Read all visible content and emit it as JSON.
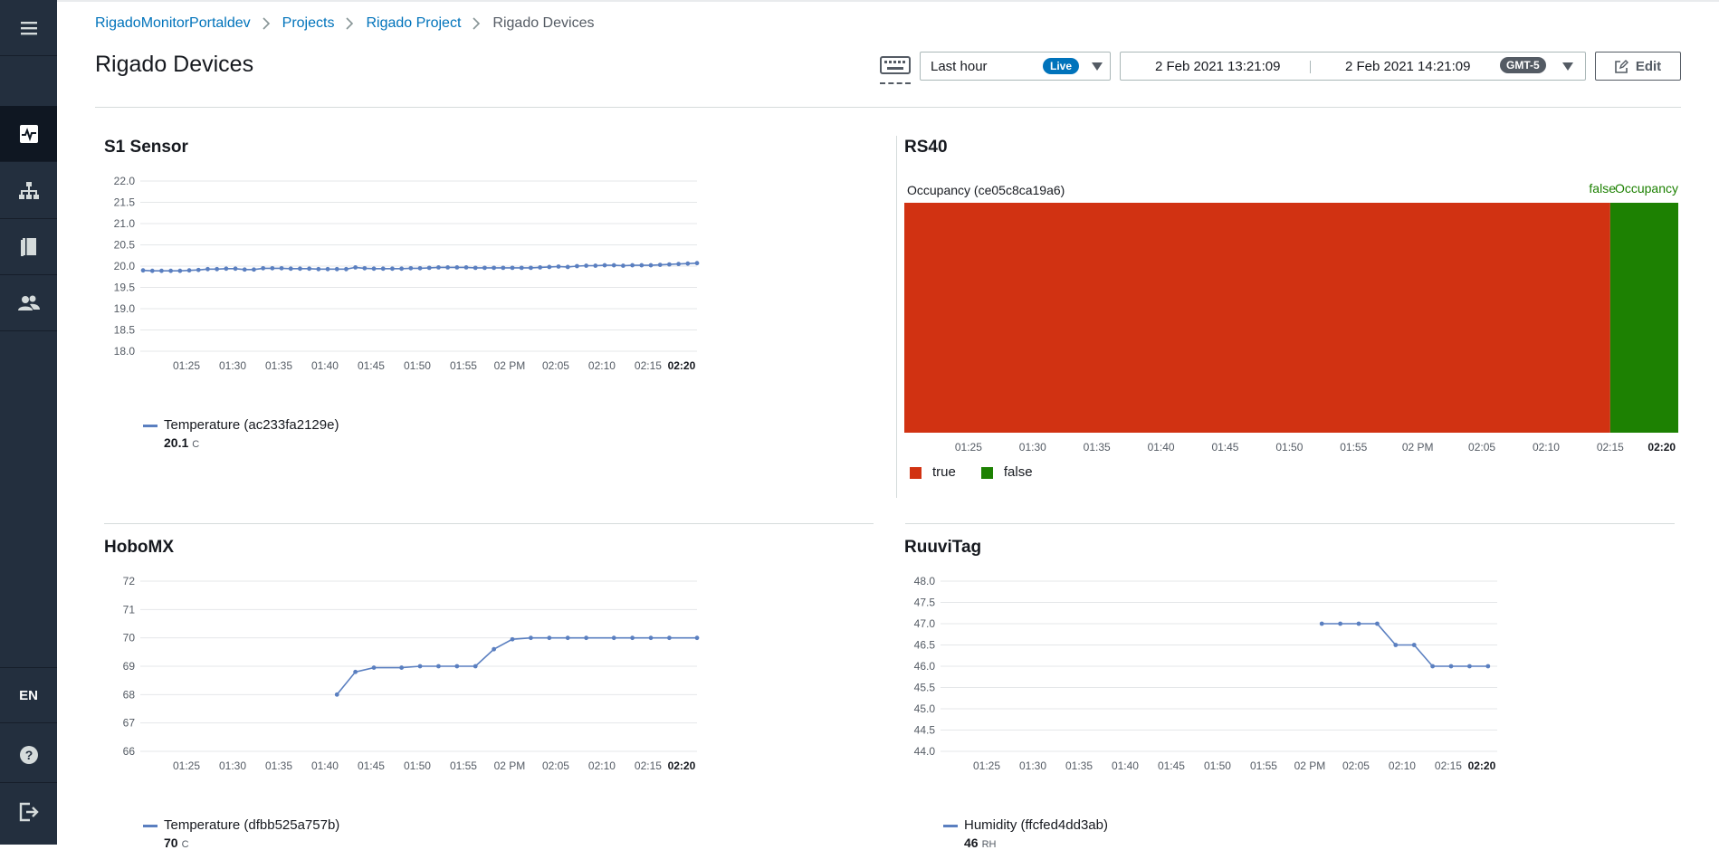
{
  "sidebar": {
    "lang": "EN",
    "items": [
      "hamburger-menu",
      "dashboard-icon",
      "hierarchy-icon",
      "book-icon",
      "users-icon"
    ]
  },
  "breadcrumb": [
    "RigadoMonitorPortaldev",
    "Projects",
    "Rigado Project",
    "Rigado Devices"
  ],
  "page_title": "Rigado Devices",
  "toolbar": {
    "range_label": "Last hour",
    "live_badge": "Live",
    "date_start": "2 Feb 2021 13:21:09",
    "date_end": "2 Feb 2021 14:21:09",
    "timezone": "GMT-5",
    "edit_label": "Edit"
  },
  "colors": {
    "accent": "#0073bb",
    "series": "#5a7fc0",
    "true": "#d13212",
    "false": "#1d8102"
  },
  "x_tick_labels": [
    "01:25",
    "01:30",
    "01:35",
    "01:40",
    "01:45",
    "01:50",
    "01:55",
    "02 PM",
    "02:05",
    "02:10",
    "02:15",
    "02:20"
  ],
  "panels": {
    "s1": {
      "title": "S1 Sensor",
      "legend": "Temperature (ac233fa2129e)",
      "legend_value": "20.1",
      "legend_unit": "C"
    },
    "rs40": {
      "title": "RS40",
      "track_label": "Occupancy (ce05c8ca19a6)",
      "end_value": "false",
      "end_label": "Occupancy",
      "legend_true": "true",
      "legend_false": "false"
    },
    "hobo": {
      "title": "HoboMX",
      "legend": "Temperature (dfbb525a757b)",
      "legend_value": "70",
      "legend_unit": "C"
    },
    "ruuvi": {
      "title": "RuuviTag",
      "legend": "Humidity (ffcfed4dd3ab)",
      "legend_value": "46",
      "legend_unit": "RH"
    }
  },
  "chart_data": [
    {
      "type": "line",
      "title": "S1 Sensor",
      "series": [
        {
          "name": "Temperature (ac233fa2129e)",
          "x": [
            0.3,
            1.3,
            2.3,
            3.3,
            4.3,
            5.3,
            6.3,
            7.3,
            8.3,
            9.3,
            10.3,
            11.3,
            12.3,
            13.3,
            14.3,
            15.3,
            16.3,
            17.3,
            18.3,
            19.3,
            20.3,
            21.3,
            22.3,
            23.3,
            24.3,
            25.3,
            26.3,
            27.3,
            28.3,
            29.3,
            30.3,
            31.3,
            32.3,
            33.3,
            34.3,
            35.3,
            36.3,
            37.3,
            38.3,
            39.3,
            40.3,
            41.3,
            42.3,
            43.3,
            44.3,
            45.3,
            46.3,
            47.3,
            48.3,
            49.3,
            50.3,
            51.3,
            52.3,
            53.3,
            54.3,
            55.3,
            56.3,
            57.3,
            58.3,
            59.3,
            60.3
          ],
          "values": [
            19.9,
            19.89,
            19.89,
            19.89,
            19.89,
            19.9,
            19.91,
            19.93,
            19.93,
            19.94,
            19.94,
            19.92,
            19.92,
            19.95,
            19.95,
            19.95,
            19.94,
            19.94,
            19.94,
            19.93,
            19.93,
            19.93,
            19.93,
            19.97,
            19.95,
            19.94,
            19.94,
            19.94,
            19.94,
            19.95,
            19.95,
            19.96,
            19.97,
            19.97,
            19.97,
            19.97,
            19.96,
            19.96,
            19.96,
            19.96,
            19.96,
            19.96,
            19.96,
            19.97,
            19.98,
            19.99,
            19.98,
            20.0,
            20.01,
            20.01,
            20.02,
            20.02,
            20.01,
            20.02,
            20.02,
            20.02,
            20.03,
            20.04,
            20.05,
            20.06,
            20.07
          ]
        }
      ],
      "xlim": [
        0,
        60.3
      ],
      "ylim": [
        18.0,
        22.0
      ],
      "yticks": [
        18.0,
        18.5,
        19.0,
        19.5,
        20.0,
        20.5,
        21.0,
        21.5,
        22.0
      ]
    },
    {
      "type": "bar",
      "title": "RS40",
      "series": [
        {
          "name": "true",
          "x_start": 0,
          "x_end": 55.0
        },
        {
          "name": "false",
          "x_start": 55.0,
          "x_end": 60.3
        }
      ],
      "xlim": [
        0,
        60.3
      ]
    },
    {
      "type": "line",
      "title": "HoboMX",
      "series": [
        {
          "name": "Temperature (dfbb525a757b)",
          "x": [
            21.3,
            23.3,
            25.3,
            28.3,
            30.3,
            32.3,
            34.3,
            36.3,
            38.3,
            40.3,
            42.3,
            44.3,
            46.3,
            48.3,
            51.3,
            53.3,
            55.3,
            57.3,
            60.3
          ],
          "values": [
            68.0,
            68.8,
            68.95,
            68.95,
            69.0,
            69.0,
            69.0,
            69.0,
            69.6,
            69.95,
            70.0,
            70.0,
            70.0,
            70.0,
            70.0,
            70.0,
            70.0,
            70.0,
            70.0
          ]
        }
      ],
      "xlim": [
        0,
        60.3
      ],
      "ylim": [
        66,
        72
      ],
      "yticks": [
        66,
        67,
        68,
        69,
        70,
        71,
        72
      ]
    },
    {
      "type": "line",
      "title": "RuuviTag",
      "series": [
        {
          "name": "Humidity (ffcfed4dd3ab)",
          "x": [
            41.3,
            43.3,
            45.3,
            47.3,
            49.3,
            51.3,
            53.3,
            55.3,
            57.3,
            59.3
          ],
          "values": [
            47.0,
            47.0,
            47.0,
            47.0,
            46.5,
            46.5,
            46.0,
            46.0,
            46.0,
            46.0
          ]
        }
      ],
      "xlim": [
        0,
        60.3
      ],
      "ylim": [
        44.0,
        48.0
      ],
      "yticks": [
        44.0,
        44.5,
        45.0,
        45.5,
        46.0,
        46.5,
        47.0,
        47.5,
        48.0
      ]
    }
  ]
}
